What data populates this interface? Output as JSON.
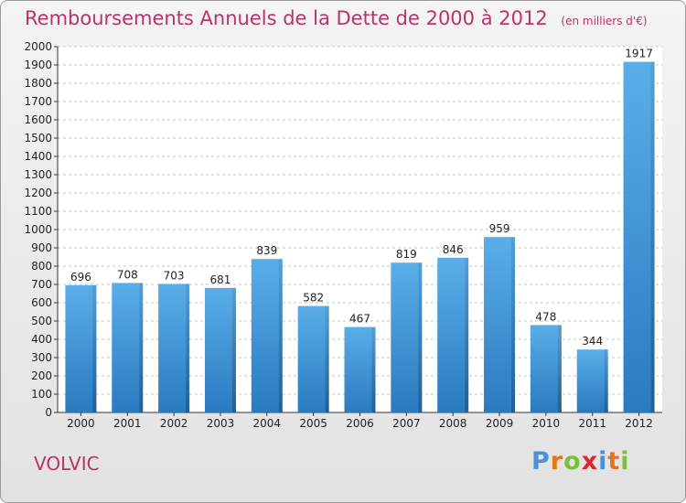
{
  "header": {
    "title": "Remboursements Annuels de la Dette de 2000 à 2012",
    "subtitle": "(en milliers d'€)"
  },
  "footer": {
    "commune": "VOLVIC",
    "logo_letters": [
      "P",
      "r",
      "o",
      "x",
      "i",
      "t",
      "i"
    ]
  },
  "colors": {
    "title": "#b8336a",
    "bar_top": "#5aaee8",
    "bar_bottom": "#2a7ac0",
    "logo": [
      "#4a8fd8",
      "#e8731a",
      "#7bbf3a",
      "#e2262d",
      "#4a8fd8",
      "#e8731a",
      "#7bbf3a"
    ]
  },
  "chart_data": {
    "type": "bar",
    "title": "Remboursements Annuels de la Dette de 2000 à 2012",
    "subtitle": "(en milliers d'€)",
    "categories": [
      "2000",
      "2001",
      "2002",
      "2003",
      "2004",
      "2005",
      "2006",
      "2007",
      "2008",
      "2009",
      "2010",
      "2011",
      "2012"
    ],
    "values": [
      696,
      708,
      703,
      681,
      839,
      582,
      467,
      819,
      846,
      959,
      478,
      344,
      1917
    ],
    "ylim": [
      0,
      2000
    ],
    "ytick_step": 100,
    "grid": true
  }
}
